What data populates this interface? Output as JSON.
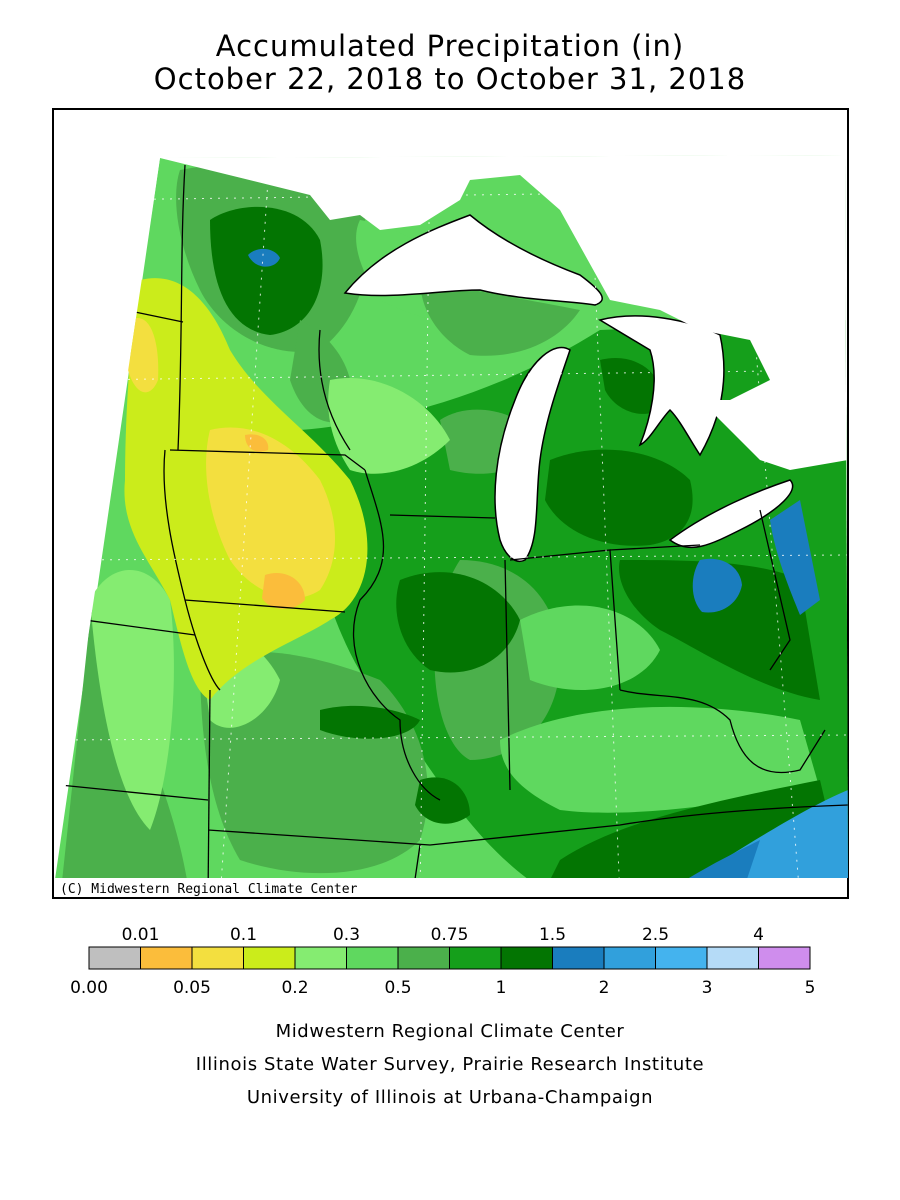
{
  "header": {
    "title_line1": "Accumulated Precipitation (in)",
    "title_line2": "October 22, 2018 to October 31, 2018"
  },
  "map": {
    "copyright": "(C) Midwestern Regional Climate Center",
    "water_color": "#ffffff",
    "border_color": "#000000"
  },
  "legend": {
    "top_labels": [
      "0.01",
      "0.1",
      "0.3",
      "0.75",
      "1.5",
      "2.5",
      "4"
    ],
    "bottom_labels": [
      "0.00",
      "0.05",
      "0.2",
      "0.5",
      "1",
      "2",
      "3",
      "5"
    ],
    "colors": [
      "#bfbfbf",
      "#fbbd3b",
      "#f3df3f",
      "#cbec1b",
      "#85ec71",
      "#5fd85f",
      "#4bb04b",
      "#159f1b",
      "#037502",
      "#1a7dbe",
      "#31a0dc",
      "#44b3ee",
      "#b5dbf7",
      "#cf8ded"
    ]
  },
  "footer": {
    "line1": "Midwestern Regional Climate Center",
    "line2": "Illinois State Water Survey, Prairie Research Institute",
    "line3": "University of Illinois at Urbana-Champaign"
  }
}
